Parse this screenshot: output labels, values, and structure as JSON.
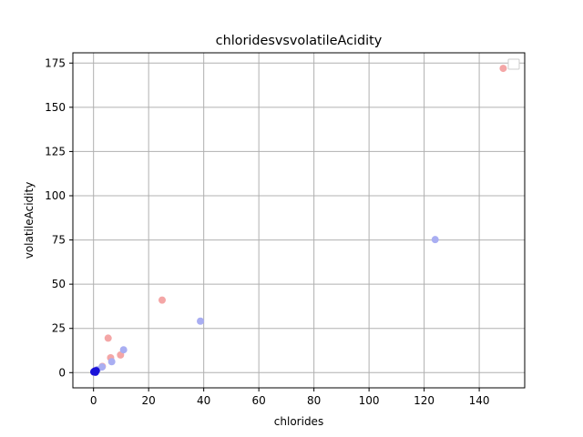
{
  "chart_data": {
    "type": "scatter",
    "title": "chloridesvsvolatileAcidity",
    "xlabel": "chlorides",
    "ylabel": "volatileAcidity",
    "xlim": [
      -7.5,
      156.5
    ],
    "ylim": [
      -8.6,
      180.8
    ],
    "xticks": [
      0,
      20,
      40,
      60,
      80,
      100,
      120,
      140
    ],
    "yticks": [
      0,
      25,
      50,
      75,
      100,
      125,
      150,
      175
    ],
    "grid": true,
    "legend": "top-right",
    "series": [
      {
        "color": "#f4a6a6",
        "points": [
          [
            148.7,
            172
          ],
          [
            24.9,
            41
          ],
          [
            5.3,
            19.5
          ],
          [
            6.2,
            8.4
          ],
          [
            9.8,
            10
          ],
          [
            3.2,
            3.5
          ],
          [
            0.8,
            1.2
          ],
          [
            0.2,
            0.3
          ]
        ]
      },
      {
        "color": "#a9aef2",
        "points": [
          [
            124,
            75.2
          ],
          [
            38.8,
            29.1
          ],
          [
            10.9,
            12.9
          ],
          [
            6.6,
            6.2
          ],
          [
            3.1,
            3.2
          ],
          [
            1.3,
            1.6
          ]
        ]
      },
      {
        "color": "#1a12d8",
        "points": [
          [
            0.1,
            0.4
          ],
          [
            0.5,
            0.9
          ],
          [
            1.0,
            1.1
          ],
          [
            0.3,
            0.7
          ],
          [
            0.7,
            0.2
          ]
        ]
      }
    ]
  }
}
